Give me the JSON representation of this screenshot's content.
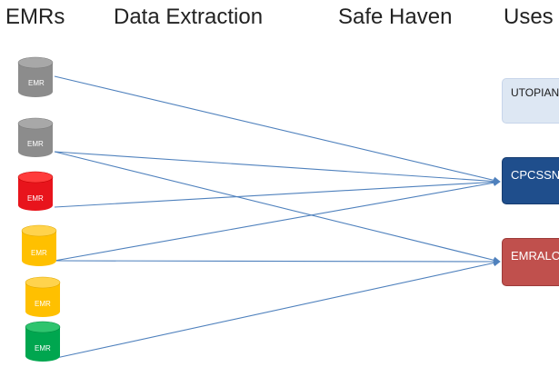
{
  "headers": {
    "emrs": "EMRs",
    "data_extraction": "Data Extraction",
    "safe_haven": "Safe Haven",
    "uses": "Uses"
  },
  "emr_label": "EMR",
  "emr_colors": {
    "gray": "#8c8c8c",
    "red": "#e8141c",
    "yellow": "#ffc000",
    "green": "#00a64f"
  },
  "arrow_color": "#4f81bd",
  "uses": {
    "utopian": "UTOPIAN",
    "cpcssn": "CPCSSN",
    "emralc": "EMRALC"
  }
}
